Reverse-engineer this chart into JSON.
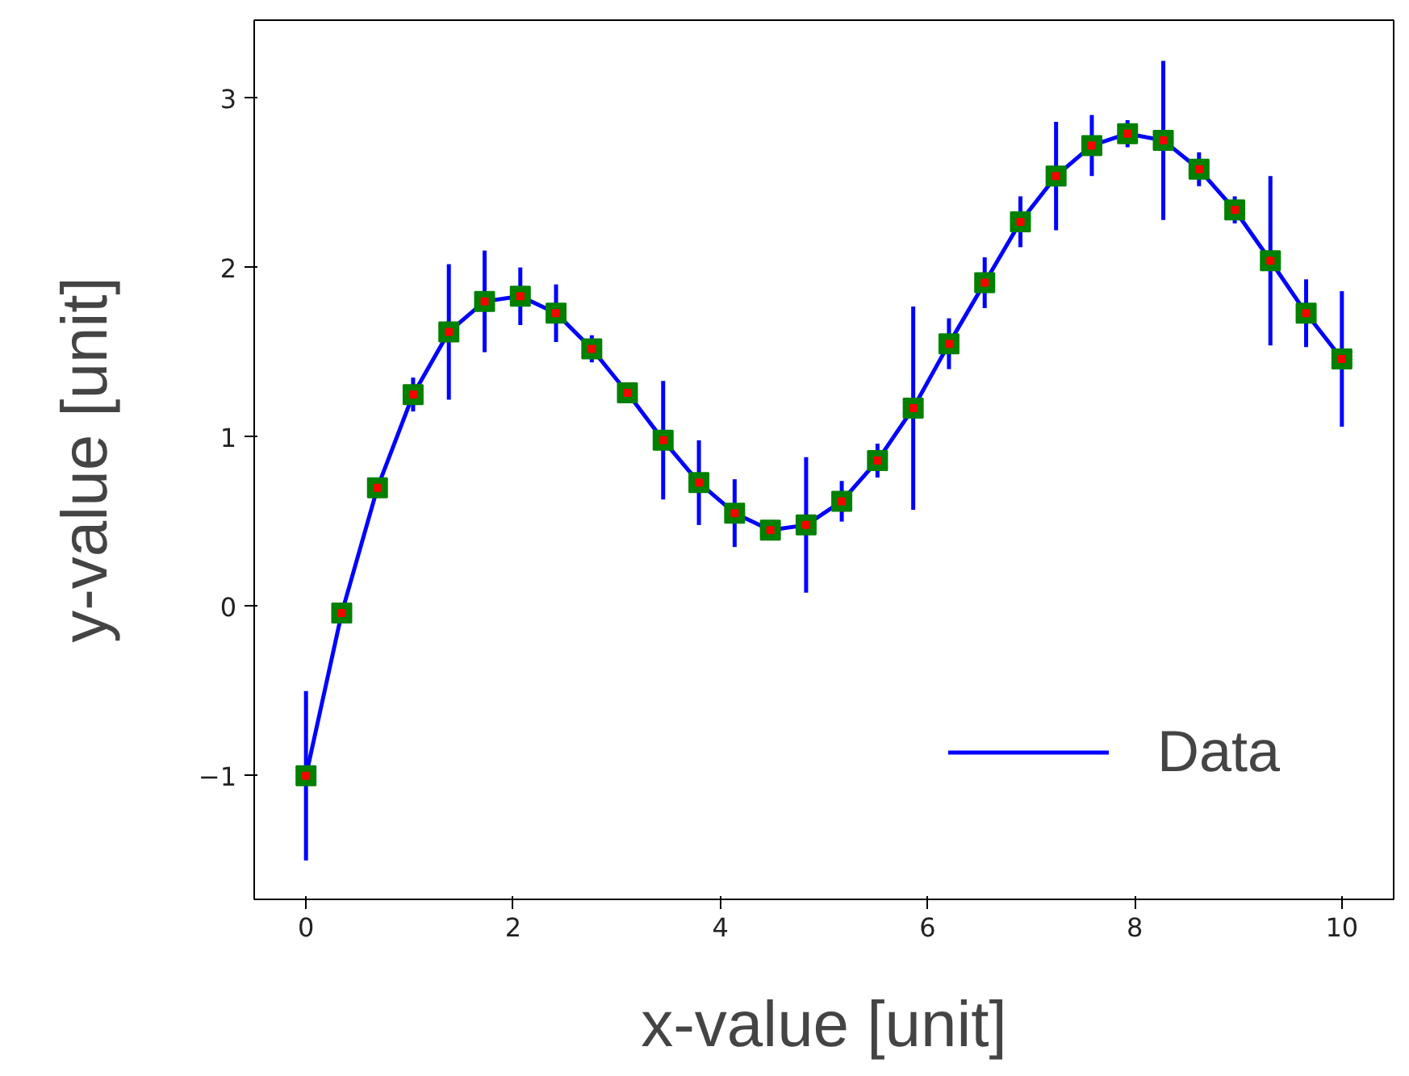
{
  "chart_data": {
    "type": "line",
    "xlabel": "x-value [unit]",
    "ylabel": "y-value [unit]",
    "x": [
      0,
      0.345,
      0.69,
      1.034,
      1.379,
      1.724,
      2.069,
      2.414,
      2.759,
      3.103,
      3.448,
      3.793,
      4.138,
      4.483,
      4.828,
      5.172,
      5.517,
      5.862,
      6.207,
      6.552,
      6.897,
      7.241,
      7.586,
      7.931,
      8.276,
      8.621,
      8.966,
      9.31,
      9.655,
      10
    ],
    "series": [
      {
        "name": "Data",
        "color": "#0000ff",
        "values": [
          -1.0,
          -0.04,
          0.7,
          1.25,
          1.62,
          1.8,
          1.83,
          1.73,
          1.52,
          1.26,
          0.98,
          0.73,
          0.55,
          0.45,
          0.48,
          0.62,
          0.86,
          1.17,
          1.55,
          1.91,
          2.27,
          2.54,
          2.72,
          2.79,
          2.75,
          2.58,
          2.34,
          2.04,
          1.73,
          1.46
        ],
        "errors": [
          0.5,
          0,
          0,
          0.1,
          0.4,
          0.3,
          0.17,
          0.17,
          0.08,
          0,
          0.35,
          0.25,
          0.2,
          0,
          0.4,
          0.12,
          0.1,
          0.6,
          0.15,
          0.15,
          0.15,
          0.32,
          0.18,
          0.08,
          0.47,
          0.1,
          0.08,
          0.5,
          0.2,
          0.4
        ]
      }
    ],
    "xlim": [
      -0.5,
      10.5
    ],
    "ylim": [
      -1.73,
      3.46
    ],
    "xticks": [
      0,
      2,
      4,
      6,
      8,
      10
    ],
    "yticks": [
      -1,
      0,
      1,
      2,
      3
    ],
    "grid": false,
    "legend": "bottom right",
    "marker": "square",
    "line_style": "solid"
  }
}
